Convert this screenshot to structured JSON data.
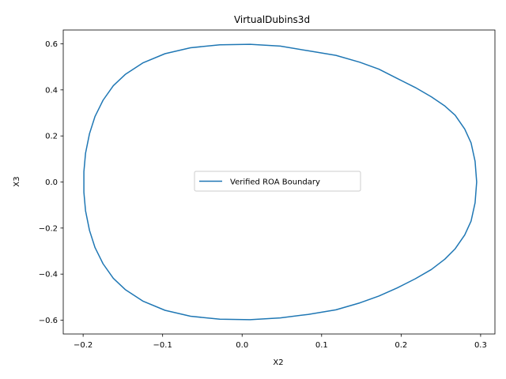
{
  "chart_data": {
    "type": "line",
    "title": "VirtualDubins3d",
    "xlabel": "X2",
    "ylabel": "X3",
    "xlim": [
      -0.225,
      0.318
    ],
    "ylim": [
      -0.66,
      0.66
    ],
    "xticks": [
      -0.2,
      -0.1,
      0.0,
      0.1,
      0.2,
      0.3
    ],
    "xtick_labels": [
      "−0.2",
      "−0.1",
      "0.0",
      "0.1",
      "0.2",
      "0.3"
    ],
    "yticks": [
      -0.6,
      -0.4,
      -0.2,
      0.0,
      0.2,
      0.4,
      0.6
    ],
    "ytick_labels": [
      "−0.6",
      "−0.4",
      "−0.2",
      "0.0",
      "0.2",
      "0.4",
      "0.6"
    ],
    "grid": false,
    "legend_position": "center",
    "series": [
      {
        "name": "Verified ROA Boundary",
        "color": "#1f77b4",
        "x": [
          0.295,
          0.293,
          0.288,
          0.28,
          0.268,
          0.255,
          0.238,
          0.218,
          0.195,
          0.172,
          0.148,
          0.118,
          0.083,
          0.048,
          0.01,
          -0.028,
          -0.065,
          -0.097,
          -0.125,
          -0.147,
          -0.162,
          -0.175,
          -0.185,
          -0.192,
          -0.197,
          -0.199,
          -0.199,
          -0.197,
          -0.192,
          -0.185,
          -0.175,
          -0.162,
          -0.147,
          -0.125,
          -0.097,
          -0.065,
          -0.028,
          0.01,
          0.048,
          0.083,
          0.118,
          0.148,
          0.172,
          0.195,
          0.218,
          0.238,
          0.255,
          0.268,
          0.28,
          0.288,
          0.293,
          0.295
        ],
        "y": [
          0.0,
          0.09,
          0.17,
          0.23,
          0.29,
          0.33,
          0.37,
          0.41,
          0.45,
          0.49,
          0.52,
          0.55,
          0.57,
          0.59,
          0.598,
          0.596,
          0.583,
          0.557,
          0.517,
          0.467,
          0.418,
          0.355,
          0.285,
          0.21,
          0.125,
          0.045,
          -0.045,
          -0.125,
          -0.21,
          -0.285,
          -0.355,
          -0.418,
          -0.467,
          -0.517,
          -0.557,
          -0.583,
          -0.596,
          -0.598,
          -0.59,
          -0.575,
          -0.555,
          -0.525,
          -0.495,
          -0.46,
          -0.42,
          -0.38,
          -0.335,
          -0.29,
          -0.23,
          -0.17,
          -0.09,
          0.0
        ]
      }
    ]
  }
}
